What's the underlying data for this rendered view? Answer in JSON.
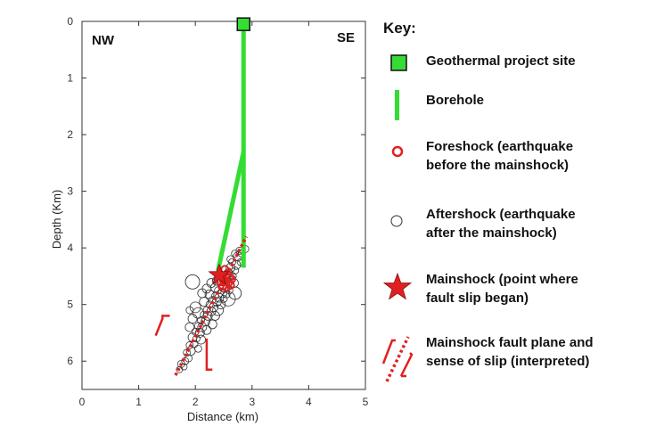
{
  "chart_data": {
    "type": "scatter",
    "title": "",
    "xlabel": "Distance (km)",
    "ylabel": "Depth (Km)",
    "xlim": [
      0,
      5
    ],
    "ylim": [
      0,
      6.5
    ],
    "y_inverted": true,
    "x_ticks": [
      "0",
      "1",
      "2",
      "3",
      "4",
      "5"
    ],
    "y_ticks": [
      "0",
      "1",
      "2",
      "3",
      "4",
      "5",
      "6"
    ],
    "grid": false,
    "corner_labels": {
      "left": "NW",
      "right": "SE"
    },
    "site": {
      "name": "Geothermal project site",
      "x": 2.85,
      "y": 0.05,
      "color": "#33dd33"
    },
    "boreholes": [
      {
        "name": "Borehole",
        "points": [
          [
            2.85,
            0.05
          ],
          [
            2.85,
            4.35
          ]
        ]
      },
      {
        "name": "Borehole",
        "points": [
          [
            2.85,
            2.3
          ],
          [
            2.4,
            4.4
          ]
        ]
      }
    ],
    "mainshock": {
      "x": 2.42,
      "y": 4.48,
      "color": "#e02020"
    },
    "foreshocks": [
      [
        2.52,
        4.38
      ],
      [
        2.56,
        4.46
      ],
      [
        2.6,
        4.52
      ],
      [
        2.5,
        4.58
      ],
      [
        2.58,
        4.62
      ],
      [
        2.64,
        4.55
      ],
      [
        2.48,
        4.68
      ],
      [
        2.55,
        4.7
      ],
      [
        2.62,
        4.66
      ],
      [
        2.45,
        4.6
      ]
    ],
    "aftershocks": [
      [
        2.88,
        4.02
      ],
      [
        2.82,
        4.1
      ],
      [
        2.75,
        4.15
      ],
      [
        2.8,
        4.25
      ],
      [
        2.72,
        4.3
      ],
      [
        2.65,
        4.25
      ],
      [
        2.7,
        4.4
      ],
      [
        2.62,
        4.35
      ],
      [
        2.66,
        4.5
      ],
      [
        2.58,
        4.45
      ],
      [
        2.6,
        4.6
      ],
      [
        2.55,
        4.55
      ],
      [
        2.5,
        4.7
      ],
      [
        2.45,
        4.65
      ],
      [
        2.48,
        4.8
      ],
      [
        2.4,
        4.75
      ],
      [
        2.42,
        4.88
      ],
      [
        2.35,
        4.85
      ],
      [
        2.38,
        4.95
      ],
      [
        2.3,
        4.92
      ],
      [
        2.32,
        5.05
      ],
      [
        2.25,
        5.0
      ],
      [
        2.28,
        5.12
      ],
      [
        2.2,
        5.1
      ],
      [
        2.22,
        5.2
      ],
      [
        2.15,
        5.18
      ],
      [
        2.18,
        5.3
      ],
      [
        2.1,
        5.28
      ],
      [
        2.12,
        5.4
      ],
      [
        2.05,
        5.38
      ],
      [
        2.08,
        5.5
      ],
      [
        2.0,
        5.48
      ],
      [
        2.02,
        5.6
      ],
      [
        1.95,
        5.58
      ],
      [
        1.98,
        5.7
      ],
      [
        1.9,
        5.72
      ],
      [
        1.92,
        5.82
      ],
      [
        1.85,
        5.85
      ],
      [
        1.88,
        5.95
      ],
      [
        1.82,
        6.0
      ],
      [
        1.8,
        6.1
      ],
      [
        1.75,
        6.05
      ],
      [
        1.72,
        6.15
      ],
      [
        2.15,
        4.95
      ],
      [
        2.25,
        4.82
      ],
      [
        2.35,
        4.7
      ],
      [
        2.05,
        5.15
      ],
      [
        1.95,
        5.25
      ],
      [
        2.0,
        5.05
      ],
      [
        1.9,
        5.4
      ],
      [
        2.45,
        5.0
      ],
      [
        2.5,
        4.9
      ],
      [
        2.55,
        4.82
      ],
      [
        2.6,
        4.75
      ],
      [
        2.4,
        5.1
      ],
      [
        2.35,
        5.2
      ],
      [
        2.3,
        5.35
      ],
      [
        2.2,
        5.45
      ],
      [
        2.1,
        5.62
      ],
      [
        2.05,
        5.78
      ],
      [
        1.9,
        5.1
      ],
      [
        2.12,
        4.8
      ],
      [
        2.2,
        4.72
      ],
      [
        2.28,
        4.62
      ],
      [
        2.38,
        4.58
      ],
      [
        2.62,
        4.2
      ],
      [
        2.7,
        4.1
      ],
      [
        2.78,
        4.05
      ],
      [
        2.68,
        4.62
      ],
      [
        2.58,
        4.9
      ]
    ],
    "aftershock_sizes": [
      4,
      4,
      5,
      4,
      5,
      4,
      4,
      5,
      4,
      5,
      4,
      5,
      5,
      4,
      5,
      4,
      5,
      4,
      5,
      4,
      5,
      4,
      5,
      4,
      5,
      4,
      5,
      4,
      5,
      4,
      5,
      4,
      4,
      5,
      4,
      4,
      5,
      4,
      4,
      4,
      3.5,
      4,
      3.5,
      5,
      5,
      5,
      6,
      5,
      6,
      5,
      5,
      4,
      4,
      4,
      6,
      5,
      5,
      5,
      5,
      4,
      4,
      5,
      5,
      5,
      5,
      4,
      4,
      4,
      5,
      8
    ],
    "large_aftershocks": [
      {
        "x": 1.95,
        "y": 4.6,
        "r": 8
      },
      {
        "x": 2.7,
        "y": 4.8,
        "r": 7
      }
    ],
    "fault_plane": {
      "points": [
        [
          1.65,
          6.25
        ],
        [
          2.9,
          3.8
        ]
      ],
      "color": "#e02020"
    },
    "slip_arrows": [
      {
        "points": [
          [
            1.3,
            5.55
          ],
          [
            1.42,
            5.25
          ],
          [
            1.42,
            5.2
          ],
          [
            1.55,
            5.2
          ]
        ],
        "direction": "up"
      },
      {
        "points": [
          [
            2.2,
            5.6
          ],
          [
            2.2,
            6.15
          ],
          [
            2.3,
            6.15
          ]
        ],
        "direction": "down"
      }
    ]
  },
  "legend": {
    "title": "Key:",
    "items": [
      {
        "symbol": "square-green",
        "text": "Geothermal project site"
      },
      {
        "symbol": "bar-green",
        "text": "Borehole"
      },
      {
        "symbol": "circle-red",
        "text": "Foreshock (earthquake\nbefore the mainshock)"
      },
      {
        "symbol": "circle-open",
        "text": "Aftershock (earthquake\nafter the mainshock)"
      },
      {
        "symbol": "star-red",
        "text": "Mainshock (point where\nfault slip began)"
      },
      {
        "symbol": "fault-red",
        "text": "Mainshock fault plane and\nsense of slip (interpreted)"
      }
    ]
  },
  "colors": {
    "green": "#33dd33",
    "red": "#e02020",
    "axis": "#333333"
  }
}
